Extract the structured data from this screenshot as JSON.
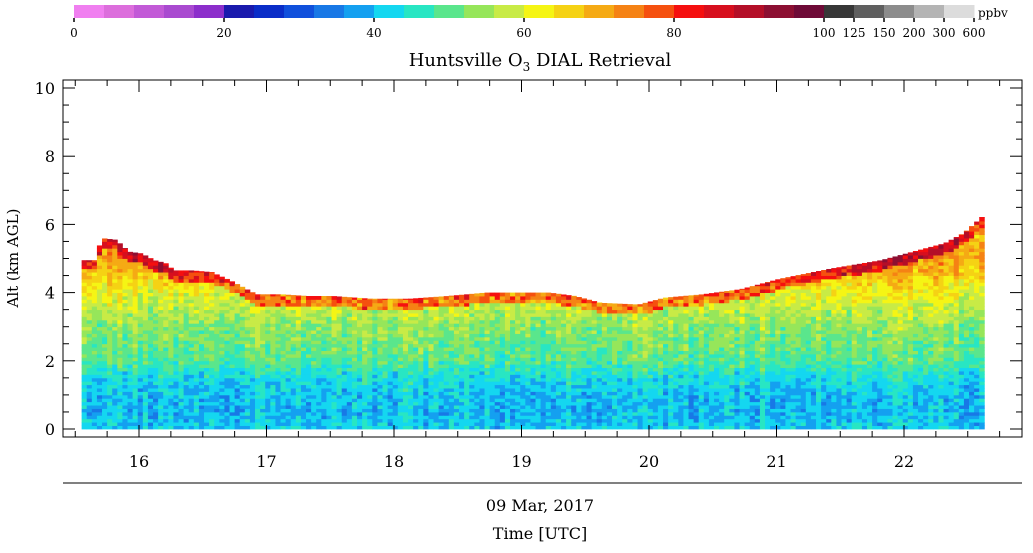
{
  "chart_data": {
    "type": "heatmap",
    "title": "Huntsville O",
    "title_subscript": "3",
    "title_suffix": " DIAL Retrieval",
    "xlabel": "Time [UTC]",
    "date_label": "09 Mar, 2017",
    "ylabel": "Alt (km AGL)",
    "x_ticks": [
      "16",
      "17",
      "18",
      "19",
      "20",
      "21",
      "22"
    ],
    "x_tick_values": [
      16,
      17,
      18,
      19,
      20,
      21,
      22
    ],
    "y_ticks": [
      "0",
      "2",
      "4",
      "6",
      "8",
      "10"
    ],
    "y_tick_values": [
      0,
      2,
      4,
      6,
      8,
      10
    ],
    "xlim": [
      15.48,
      23.0
    ],
    "ylim": [
      0,
      10
    ],
    "data_time_range": [
      15.55,
      22.6
    ],
    "colorbar": {
      "unit": "ppbv",
      "ticks": [
        "0",
        "20",
        "40",
        "60",
        "80",
        "100",
        "125",
        "150",
        "200",
        "300",
        "600"
      ],
      "bins": [
        "#f07ff0",
        "#dc6edc",
        "#c25ad7",
        "#a94ad0",
        "#8c2ecb",
        "#1a1aad",
        "#0a2dc8",
        "#1050dc",
        "#1878e6",
        "#14a0f0",
        "#14d7f0",
        "#28e6c3",
        "#5ae68c",
        "#96e65a",
        "#c8eb46",
        "#f5f514",
        "#f5d214",
        "#f5aa14",
        "#f58214",
        "#f5500f",
        "#f50f0f",
        "#d70f1e",
        "#b40f28",
        "#8c0f32",
        "#6e0a37",
        "#373737",
        "#5f5f5f",
        "#8c8c8c",
        "#b4b4b4",
        "#dcdcdc"
      ]
    },
    "curtain_top": [
      [
        15.55,
        4.95
      ],
      [
        15.65,
        4.95
      ],
      [
        15.68,
        5.6
      ],
      [
        15.8,
        5.55
      ],
      [
        15.9,
        5.2
      ],
      [
        16.0,
        5.15
      ],
      [
        16.1,
        4.95
      ],
      [
        16.2,
        4.85
      ],
      [
        16.25,
        4.65
      ],
      [
        16.4,
        4.65
      ],
      [
        16.55,
        4.6
      ],
      [
        16.7,
        4.35
      ],
      [
        16.8,
        4.15
      ],
      [
        16.9,
        3.95
      ],
      [
        17.1,
        3.95
      ],
      [
        17.3,
        3.9
      ],
      [
        17.5,
        3.9
      ],
      [
        17.8,
        3.82
      ],
      [
        18.1,
        3.82
      ],
      [
        18.4,
        3.9
      ],
      [
        18.7,
        4.0
      ],
      [
        19.2,
        4.0
      ],
      [
        19.4,
        3.9
      ],
      [
        19.6,
        3.7
      ],
      [
        19.9,
        3.65
      ],
      [
        20.1,
        3.85
      ],
      [
        20.4,
        3.95
      ],
      [
        20.7,
        4.1
      ],
      [
        21.0,
        4.4
      ],
      [
        21.4,
        4.7
      ],
      [
        21.8,
        4.95
      ],
      [
        22.1,
        5.25
      ],
      [
        22.3,
        5.45
      ],
      [
        22.45,
        5.75
      ],
      [
        22.6,
        6.25
      ]
    ],
    "vertical_profile_ppbv": [
      [
        0.0,
        42
      ],
      [
        0.5,
        40
      ],
      [
        1.0,
        41
      ],
      [
        1.5,
        44
      ],
      [
        2.0,
        50
      ],
      [
        2.5,
        52
      ],
      [
        3.0,
        54
      ],
      [
        3.5,
        58
      ],
      [
        4.0,
        62
      ],
      [
        4.5,
        68
      ],
      [
        5.0,
        72
      ],
      [
        5.5,
        70
      ],
      [
        6.2,
        66
      ]
    ]
  }
}
